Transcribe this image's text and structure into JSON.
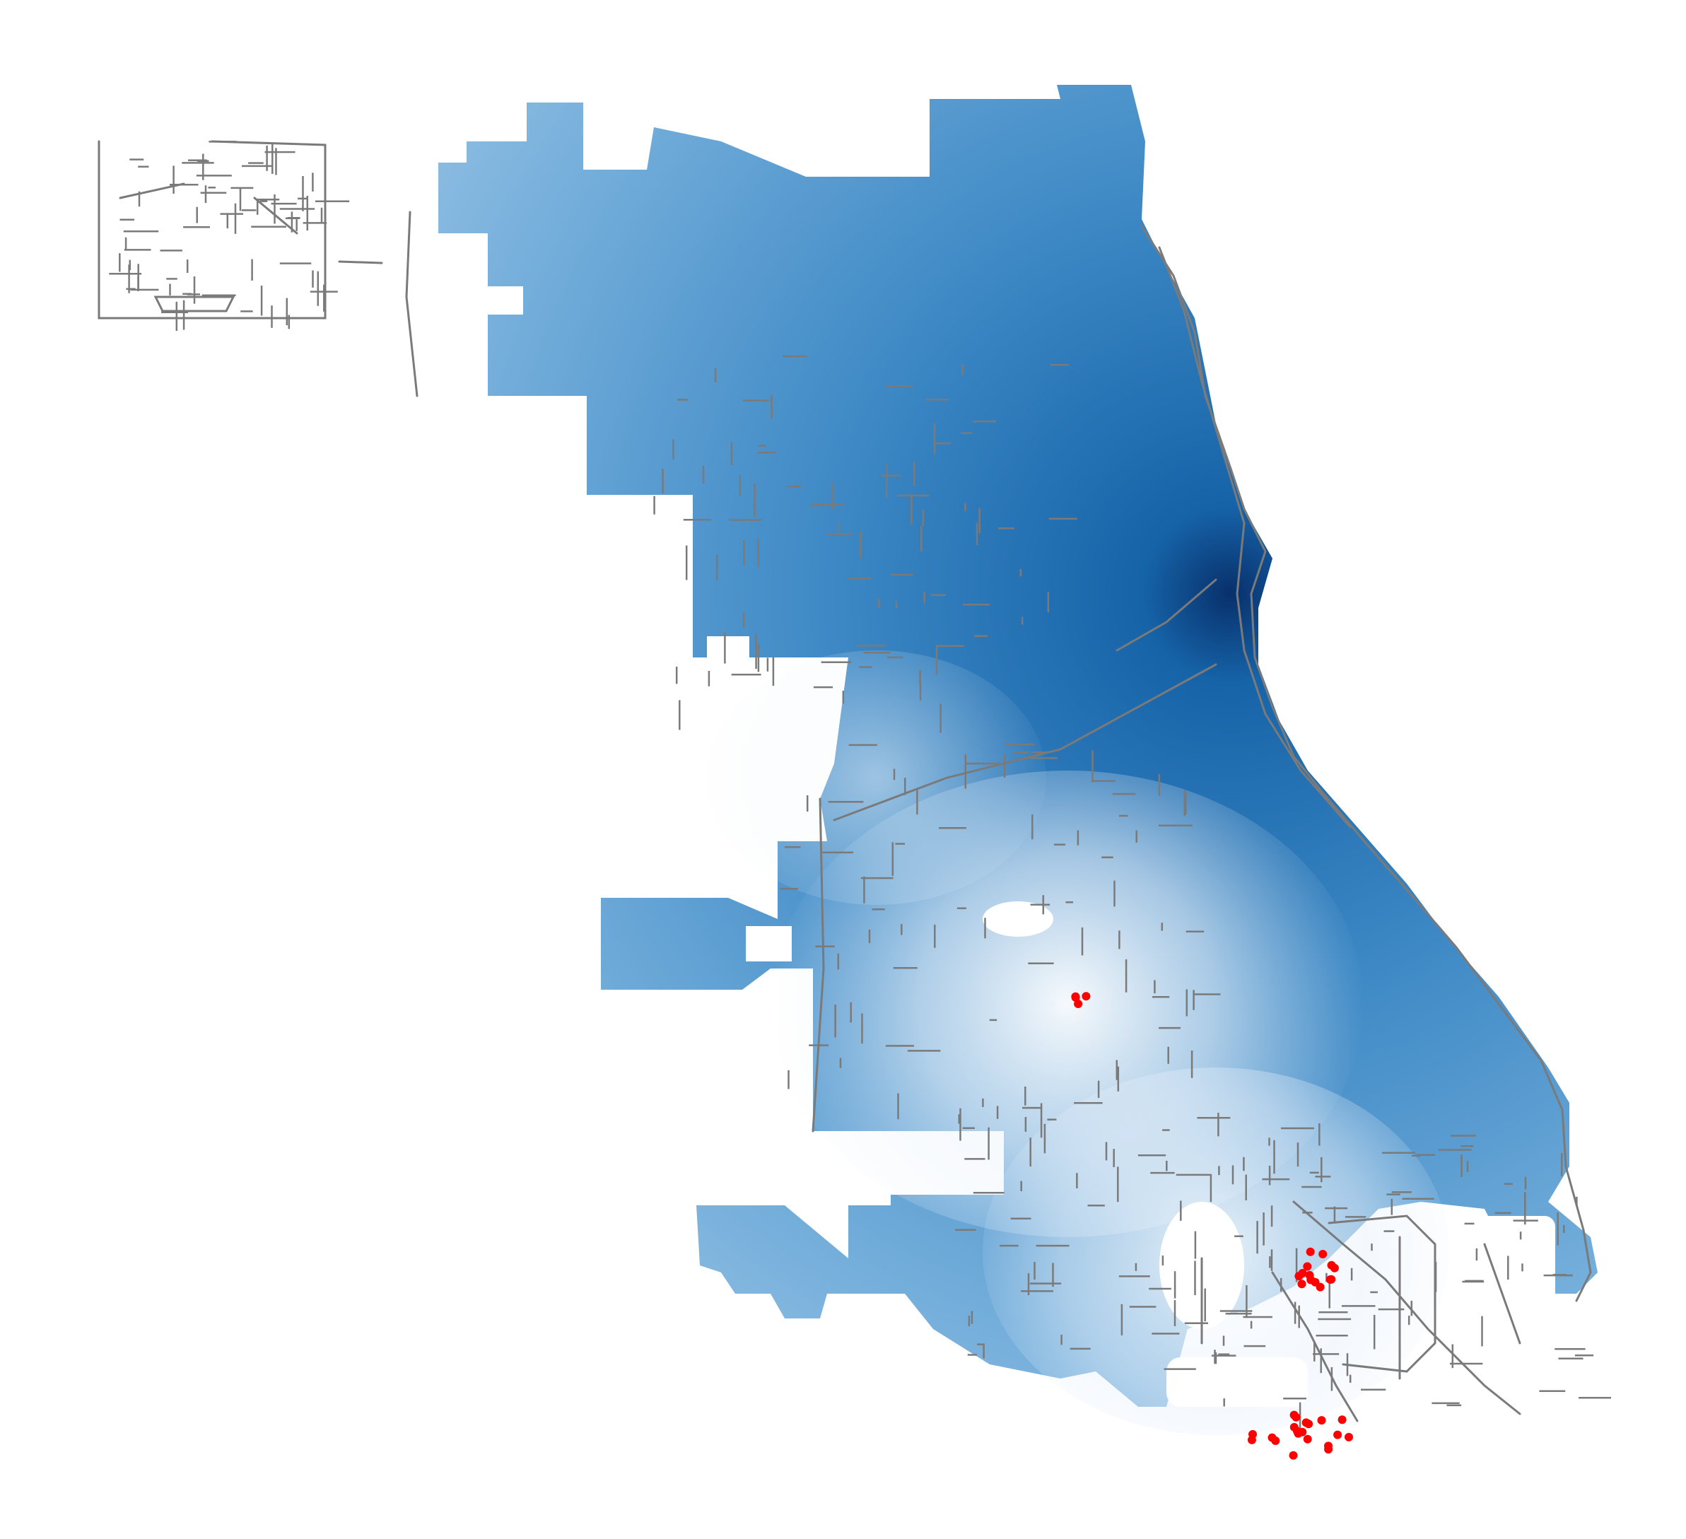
{
  "map": {
    "type": "point-density-map",
    "region": "Chicago",
    "title": "",
    "legend": "none",
    "colors": {
      "background": "#ffffff",
      "road_network": "#7a7a7a",
      "density_low": "#e6f0fa",
      "density_mid": "#5b9fd3",
      "density_high": "#08306b",
      "highlight_points": "#ff0000"
    },
    "highlight_clusters": [
      {
        "id": "south-central",
        "count": 4
      },
      {
        "id": "far-south-east-upper",
        "count": 14
      },
      {
        "id": "far-south-east-lower",
        "count": 20
      }
    ]
  }
}
